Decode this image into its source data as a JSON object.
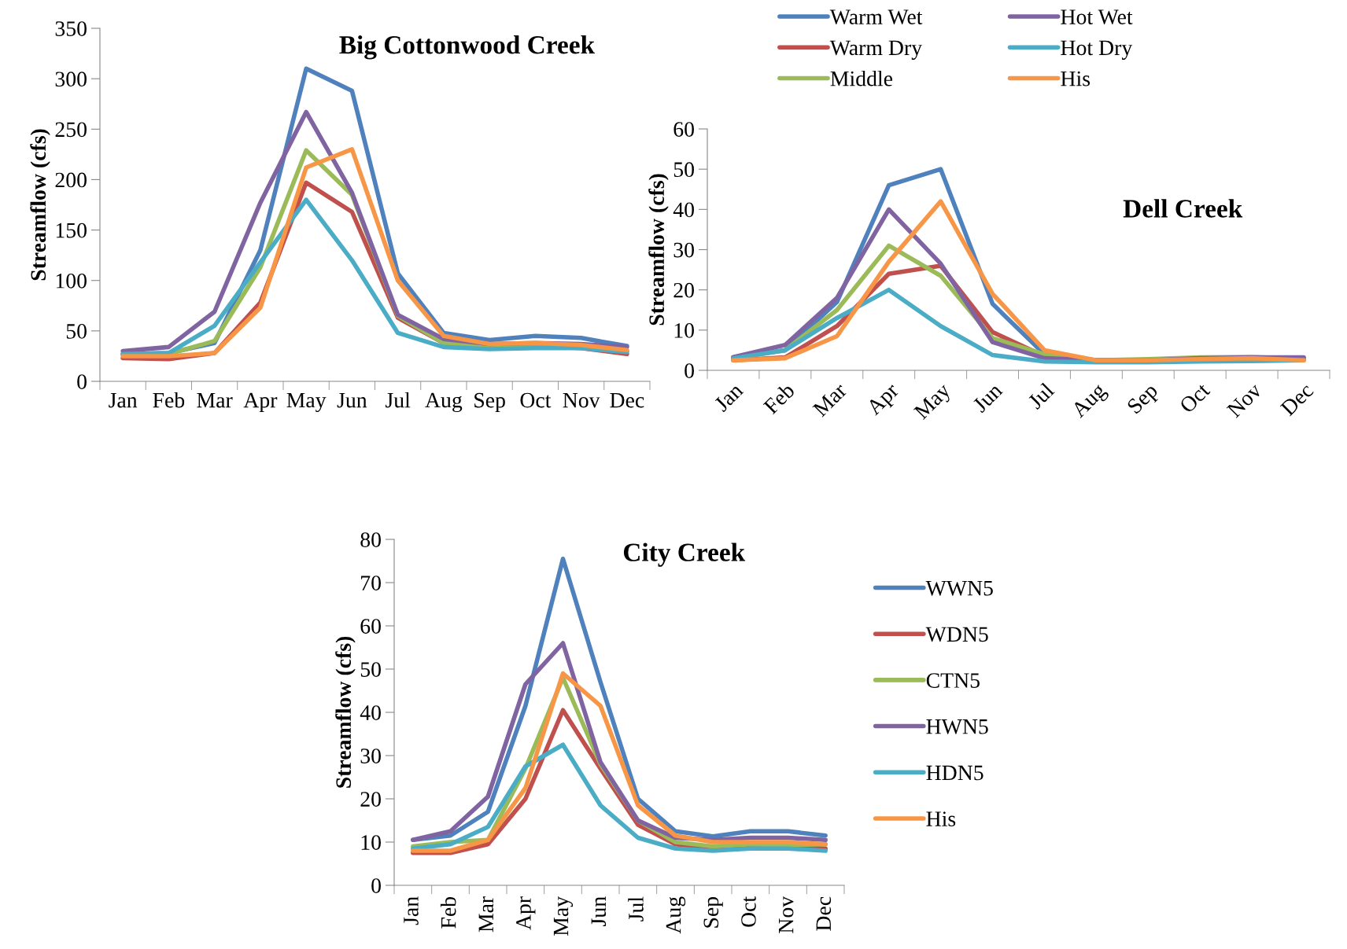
{
  "chart_data": [
    {
      "type": "line",
      "title": "Big Cottonwood Creek",
      "ylabel": "Streamflow (cfs)",
      "categories": [
        "Jan",
        "Feb",
        "Mar",
        "Apr",
        "May",
        "Jun",
        "Jul",
        "Aug",
        "Sep",
        "Oct",
        "Nov",
        "Dec"
      ],
      "ylim": [
        0,
        350
      ],
      "yticks": [
        0,
        50,
        100,
        150,
        200,
        250,
        300,
        350
      ],
      "grid": false,
      "legend": "top right",
      "marker": "none",
      "line_style": "solid",
      "series": [
        {
          "name": "Warm Wet",
          "color": "#4f81bd",
          "values": [
            27,
            28,
            38,
            130,
            310,
            288,
            107,
            48,
            41,
            45,
            43,
            35
          ]
        },
        {
          "name": "Warm Dry",
          "color": "#c0504d",
          "values": [
            23,
            22,
            28,
            78,
            197,
            168,
            63,
            38,
            35,
            35,
            33,
            27
          ]
        },
        {
          "name": "Middle",
          "color": "#9bbb59",
          "values": [
            27,
            27,
            40,
            113,
            229,
            185,
            65,
            38,
            35,
            36,
            35,
            30
          ]
        },
        {
          "name": "Hot Wet",
          "color": "#8064a2",
          "values": [
            30,
            34,
            69,
            177,
            267,
            187,
            66,
            42,
            37,
            38,
            37,
            34
          ]
        },
        {
          "name": "Hot Dry",
          "color": "#4bacc6",
          "values": [
            27,
            28,
            55,
            118,
            180,
            120,
            48,
            34,
            32,
            33,
            33,
            29
          ]
        },
        {
          "name": "His",
          "color": "#f79646",
          "values": [
            25,
            25,
            28,
            73,
            212,
            230,
            100,
            45,
            37,
            38,
            36,
            31
          ]
        }
      ]
    },
    {
      "type": "line",
      "title": "Dell Creek",
      "ylabel": "Streamflow (cfs)",
      "categories": [
        "Jan",
        "Feb",
        "Mar",
        "Apr",
        "May",
        "Jun",
        "Jul",
        "Aug",
        "Sep",
        "Oct",
        "Nov",
        "Dec"
      ],
      "ylim": [
        0,
        60
      ],
      "yticks": [
        0,
        10,
        20,
        30,
        40,
        50,
        60
      ],
      "grid": false,
      "legend": false,
      "marker": "none",
      "line_style": "solid",
      "series": [
        {
          "color": "#4f81bd",
          "values": [
            3.2,
            5,
            17,
            46,
            50,
            16.5,
            4,
            2.5,
            2.5,
            3,
            3,
            3
          ]
        },
        {
          "color": "#c0504d",
          "values": [
            2.5,
            3.2,
            11,
            24,
            26,
            9.5,
            3.5,
            2.5,
            2.5,
            3,
            3,
            2.8
          ]
        },
        {
          "color": "#9bbb59",
          "values": [
            3,
            5,
            15,
            31,
            23.5,
            8,
            4,
            2.5,
            2.8,
            3.2,
            3.3,
            2.8
          ]
        },
        {
          "color": "#8064a2",
          "values": [
            3.3,
            6.3,
            18,
            40,
            26.5,
            7,
            3,
            2.5,
            2.5,
            3,
            3.2,
            3.2
          ]
        },
        {
          "color": "#4bacc6",
          "values": [
            3,
            5,
            13,
            20,
            11,
            3.8,
            2.2,
            2,
            2,
            2.2,
            2.3,
            2.5
          ]
        },
        {
          "color": "#f79646",
          "values": [
            2.5,
            3,
            8.5,
            27,
            42,
            19,
            5,
            2.5,
            2.5,
            2.8,
            3,
            2.5
          ]
        }
      ]
    },
    {
      "type": "line",
      "title": "City Creek",
      "ylabel": "Streamflow (cfs)",
      "categories": [
        "Jan",
        "Feb",
        "Mar",
        "Apr",
        "May",
        "Jun",
        "Jul",
        "Aug",
        "Sep",
        "Oct",
        "Nov",
        "Dec"
      ],
      "ylim": [
        0,
        80
      ],
      "yticks": [
        0,
        10,
        20,
        30,
        40,
        50,
        60,
        70,
        80
      ],
      "grid": false,
      "legend": "right",
      "marker": "none",
      "line_style": "solid",
      "series": [
        {
          "name": "WWN5",
          "color": "#4f81bd",
          "values": [
            10.5,
            11.5,
            17,
            41.5,
            75.5,
            47,
            20,
            12.5,
            11.3,
            12.5,
            12.5,
            11.5
          ]
        },
        {
          "name": "WDN5",
          "color": "#c0504d",
          "values": [
            7.5,
            7.5,
            9.5,
            20,
            40.5,
            27,
            14,
            9.5,
            8.5,
            9,
            9,
            8.5
          ]
        },
        {
          "name": "CTN5",
          "color": "#9bbb59",
          "values": [
            9,
            10,
            10.5,
            27,
            48,
            28,
            15,
            10,
            9,
            9.5,
            9.3,
            9.5
          ]
        },
        {
          "name": "HWN5",
          "color": "#8064a2",
          "values": [
            10.5,
            12.5,
            20.5,
            46.5,
            56,
            28.5,
            15,
            11,
            10.5,
            11,
            11,
            10.5
          ]
        },
        {
          "name": "HDN5",
          "color": "#4bacc6",
          "values": [
            8.5,
            9.5,
            13.5,
            27.5,
            32.5,
            18.5,
            11,
            8.5,
            8,
            8.5,
            8.5,
            8
          ]
        },
        {
          "name": "His",
          "color": "#f79646",
          "values": [
            8,
            8,
            10.5,
            22.5,
            49,
            41.5,
            18.5,
            11.5,
            10,
            10,
            10,
            9.5
          ]
        }
      ]
    }
  ]
}
